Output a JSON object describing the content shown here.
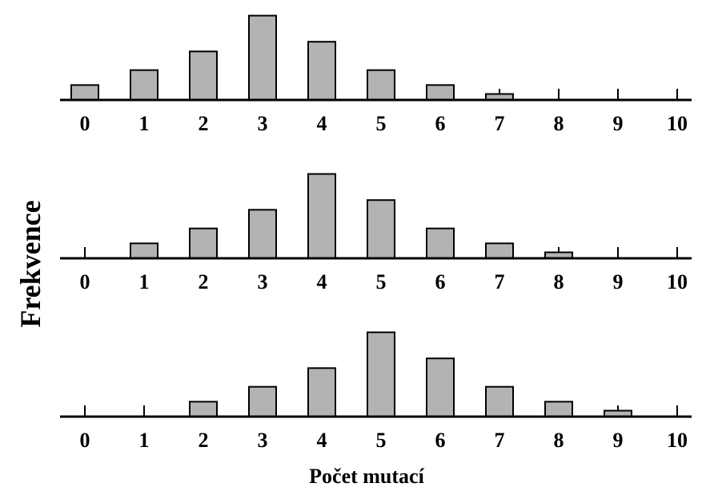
{
  "chart_data": [
    {
      "type": "bar",
      "categories": [
        "0",
        "1",
        "2",
        "3",
        "4",
        "5",
        "6",
        "7",
        "8",
        "9",
        "10"
      ],
      "values": [
        1,
        2,
        3.25,
        5.65,
        3.9,
        2,
        1,
        0.4,
        0,
        0,
        0
      ],
      "bar_color": "#b3b3b3",
      "ylim": [
        0,
        6
      ]
    },
    {
      "type": "bar",
      "categories": [
        "0",
        "1",
        "2",
        "3",
        "4",
        "5",
        "6",
        "7",
        "8",
        "9",
        "10"
      ],
      "values": [
        0,
        1,
        2,
        3.25,
        5.65,
        3.9,
        2,
        1,
        0.4,
        0,
        0
      ],
      "bar_color": "#b3b3b3",
      "ylim": [
        0,
        6
      ]
    },
    {
      "type": "bar",
      "categories": [
        "0",
        "1",
        "2",
        "3",
        "4",
        "5",
        "6",
        "7",
        "8",
        "9",
        "10"
      ],
      "values": [
        0,
        0,
        1,
        2,
        3.25,
        5.65,
        3.9,
        2,
        1,
        0.4,
        0
      ],
      "bar_color": "#b3b3b3",
      "ylim": [
        0,
        6
      ]
    }
  ],
  "shared": {
    "xlabel": "Počet mutací",
    "ylabel": "Frekvence"
  }
}
